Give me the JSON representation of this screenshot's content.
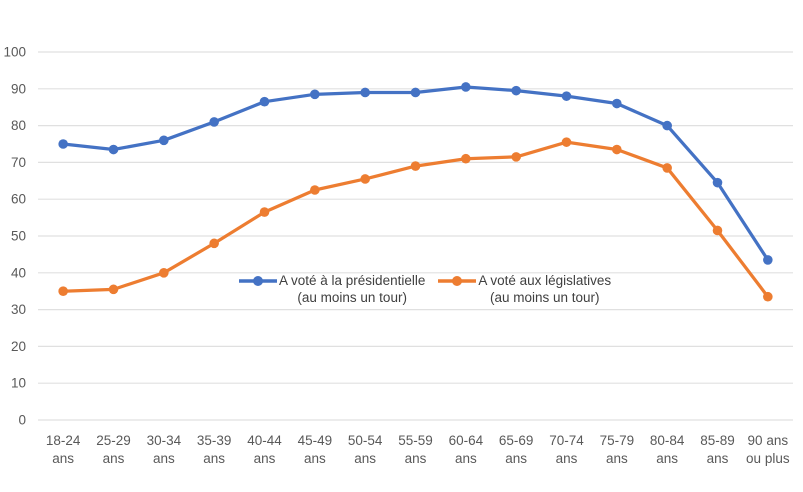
{
  "chart_data": {
    "type": "line",
    "title": "",
    "xlabel": "",
    "ylabel": "",
    "categories": [
      "18-24 ans",
      "25-29 ans",
      "30-34 ans",
      "35-39 ans",
      "40-44 ans",
      "45-49 ans",
      "50-54 ans",
      "55-59 ans",
      "60-64 ans",
      "65-69 ans",
      "70-74 ans",
      "75-79 ans",
      "80-84 ans",
      "85-89 ans",
      "90 ans ou plus"
    ],
    "tick_label_lines": [
      [
        "18-24",
        "ans"
      ],
      [
        "25-29",
        "ans"
      ],
      [
        "30-34",
        "ans"
      ],
      [
        "35-39",
        "ans"
      ],
      [
        "40-44",
        "ans"
      ],
      [
        "45-49",
        "ans"
      ],
      [
        "50-54",
        "ans"
      ],
      [
        "55-59",
        "ans"
      ],
      [
        "60-64",
        "ans"
      ],
      [
        "65-69",
        "ans"
      ],
      [
        "70-74",
        "ans"
      ],
      [
        "75-79",
        "ans"
      ],
      [
        "80-84",
        "ans"
      ],
      [
        "85-89",
        "ans"
      ],
      [
        "90 ans",
        "ou plus"
      ]
    ],
    "series": [
      {
        "key": "presidentielle",
        "name": "A voté à la présidentielle (au moins un tour)",
        "legend_lines": [
          "A voté à la présidentielle",
          "(au moins un tour)"
        ],
        "color": "#4472C4",
        "values": [
          75,
          73.5,
          76,
          81,
          86.5,
          88.5,
          89,
          89,
          90.5,
          89.5,
          88,
          86,
          80,
          64.5,
          43.5
        ]
      },
      {
        "key": "legislatives",
        "name": "A voté aux législatives (au moins un tour)",
        "legend_lines": [
          "A voté aux législatives",
          "(au moins un tour)"
        ],
        "color": "#ED7D31",
        "values": [
          35,
          35.5,
          40,
          48,
          56.5,
          62.5,
          65.5,
          69,
          71,
          71.5,
          75.5,
          73.5,
          68.5,
          51.5,
          33.5
        ]
      }
    ],
    "yticks": [
      0,
      10,
      20,
      30,
      40,
      50,
      60,
      70,
      80,
      90,
      100
    ],
    "ylim": [
      0,
      100
    ],
    "grid": true,
    "legend_position": "inside-plot-center",
    "colors": {
      "grid": "#E0E0E0",
      "axis_text": "#595959",
      "legend_text": "#404040"
    }
  }
}
